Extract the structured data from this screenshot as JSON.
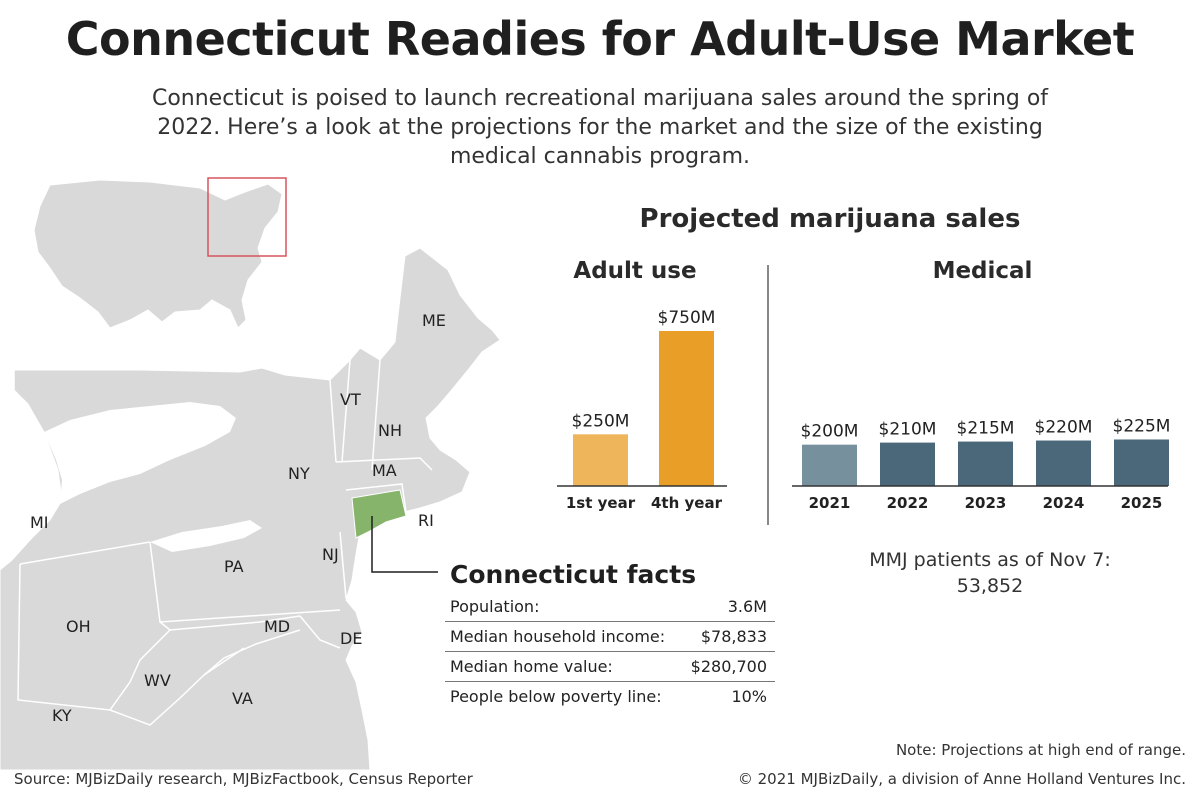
{
  "title": "Connecticut Readies for Adult-Use Market",
  "subtitle": "Connecticut is poised to launch recreational marijuana sales around the spring of 2022. Here’s a look at the projections for the market and the size of the existing medical cannabis program.",
  "section_title": "Projected marijuana sales",
  "chart_data": [
    {
      "type": "bar",
      "title": "Adult use",
      "categories": [
        "1st year",
        "4th year"
      ],
      "values": [
        250,
        750
      ],
      "value_labels": [
        "$250M",
        "$750M"
      ],
      "colors": [
        "#efb55b",
        "#e99f27"
      ],
      "ylim": [
        0,
        800
      ]
    },
    {
      "type": "bar",
      "title": "Medical",
      "categories": [
        "2021",
        "2022",
        "2023",
        "2024",
        "2025"
      ],
      "values": [
        200,
        210,
        215,
        220,
        225
      ],
      "value_labels": [
        "$200M",
        "$210M",
        "$215M",
        "$220M",
        "$225M"
      ],
      "colors": [
        "#76909d",
        "#4b687b",
        "#4b687b",
        "#4b687b",
        "#4b687b"
      ],
      "ylim": [
        0,
        800
      ]
    }
  ],
  "mmj": {
    "label": "MMJ patients as of Nov 7:",
    "value": "53,852"
  },
  "map": {
    "state_labels": [
      "ME",
      "VT",
      "NH",
      "NY",
      "MA",
      "RI",
      "MI",
      "PA",
      "NJ",
      "OH",
      "MD",
      "DE",
      "WV",
      "VA",
      "KY"
    ],
    "highlight_color": "#85b46a",
    "land_color": "#d9d9d9",
    "inset_box_color": "#d8545e"
  },
  "facts": {
    "title": "Connecticut facts",
    "rows": [
      {
        "label": "Population:",
        "value": "3.6M"
      },
      {
        "label": "Median household income:",
        "value": "$78,833"
      },
      {
        "label": "Median home value:",
        "value": "$280,700"
      },
      {
        "label": "People below poverty line:",
        "value": "10%"
      }
    ]
  },
  "note": "Note: Projections at high end of range.",
  "source": "Source: MJBizDaily research, MJBizFactbook, Census Reporter",
  "copyright": "© 2021 MJBizDaily, a division of Anne Holland Ventures Inc."
}
